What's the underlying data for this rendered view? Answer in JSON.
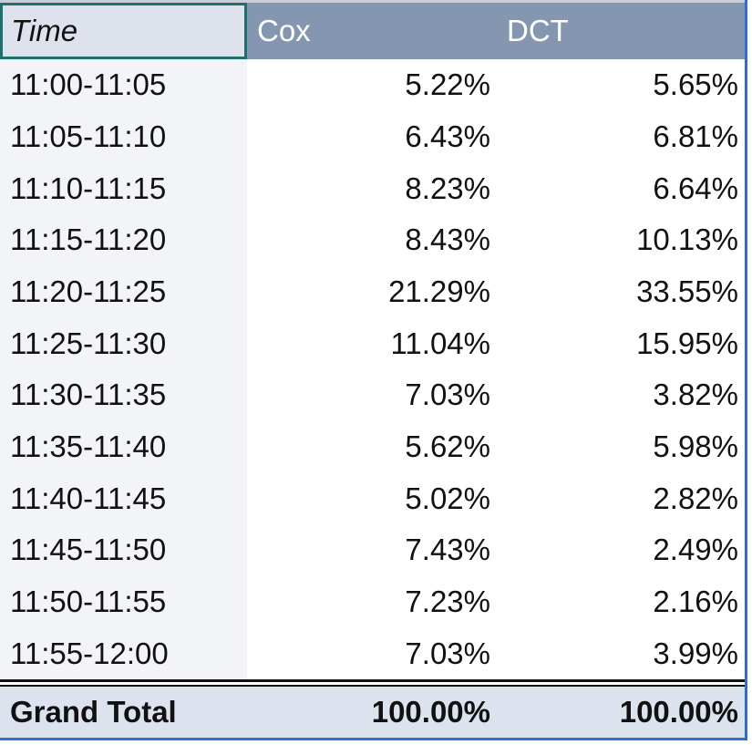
{
  "table": {
    "header": [
      "Time",
      "Cox",
      "DCT"
    ],
    "rows": [
      [
        "11:00-11:05",
        "5.22%",
        "5.65%"
      ],
      [
        "11:05-11:10",
        "6.43%",
        "6.81%"
      ],
      [
        "11:10-11:15",
        "8.23%",
        "6.64%"
      ],
      [
        "11:15-11:20",
        "8.43%",
        "10.13%"
      ],
      [
        "11:20-11:25",
        "21.29%",
        "33.55%"
      ],
      [
        "11:25-11:30",
        "11.04%",
        "15.95%"
      ],
      [
        "11:30-11:35",
        "7.03%",
        "3.82%"
      ],
      [
        "11:35-11:40",
        "5.62%",
        "5.98%"
      ],
      [
        "11:40-11:45",
        "5.02%",
        "2.82%"
      ],
      [
        "11:45-11:50",
        "7.43%",
        "2.49%"
      ],
      [
        "11:50-11:55",
        "7.23%",
        "2.16%"
      ],
      [
        "11:55-12:00",
        "7.03%",
        "3.99%"
      ]
    ],
    "total": [
      "Grand Total",
      "100.00%",
      "100.00%"
    ]
  }
}
